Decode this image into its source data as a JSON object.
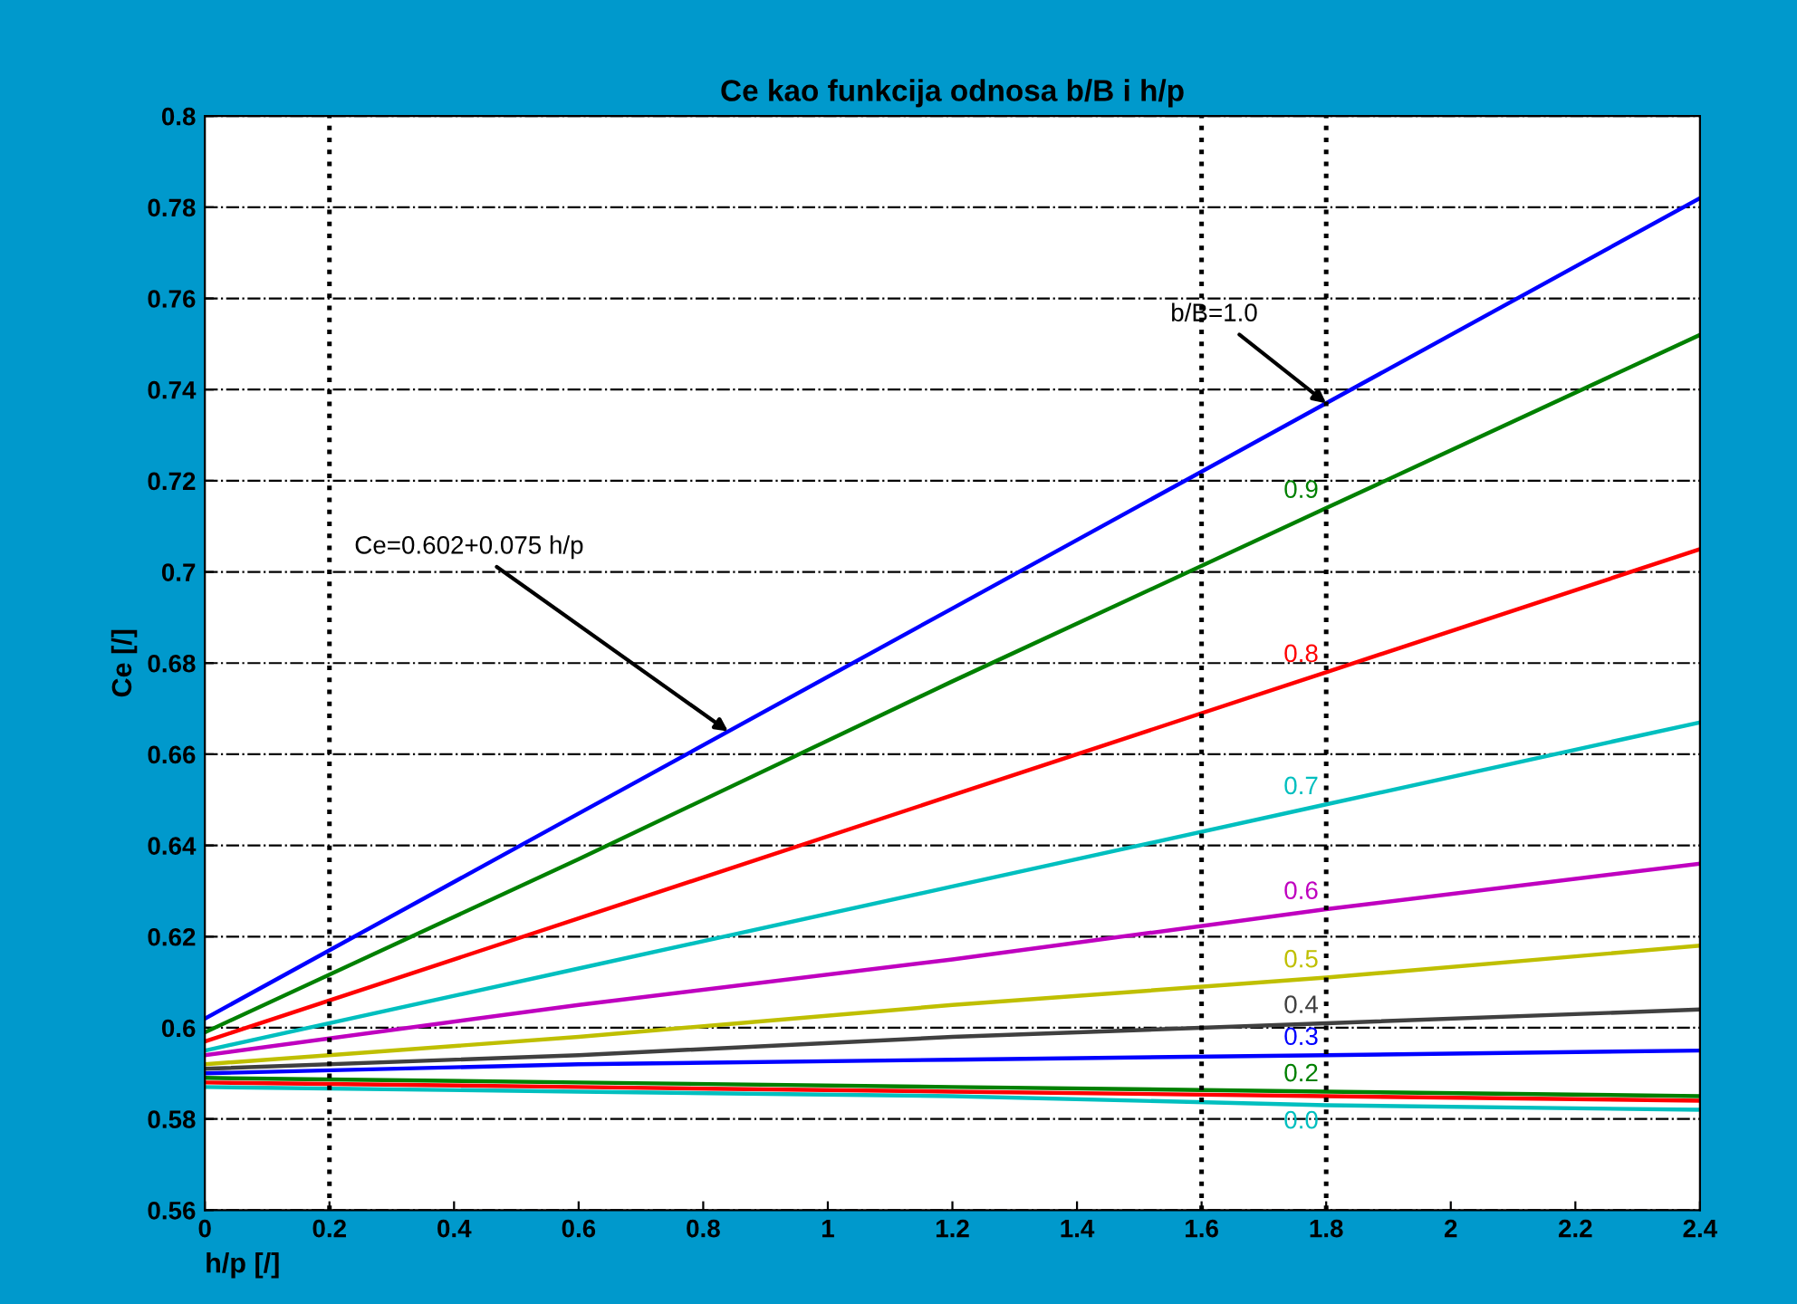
{
  "chart_data": {
    "type": "line",
    "title": "Ce kao funkcija odnosa b/B i h/p",
    "xlabel": "h/p [/]",
    "ylabel": "Ce [/]",
    "x": [
      0,
      0.6,
      1.2,
      1.8,
      2.4
    ],
    "series": [
      {
        "color": "#0000ff",
        "values": [
          0.602,
          0.647,
          0.692,
          0.737,
          0.782
        ]
      },
      {
        "name": "0.9",
        "color": "#008000",
        "values": [
          0.599,
          0.637,
          0.676,
          0.714,
          0.752
        ]
      },
      {
        "name": "0.8",
        "color": "#ff0000",
        "values": [
          0.597,
          0.624,
          0.651,
          0.678,
          0.705
        ]
      },
      {
        "name": "0.7",
        "color": "#00bfbf",
        "values": [
          0.595,
          0.613,
          0.631,
          0.649,
          0.667
        ]
      },
      {
        "name": "0.6",
        "color": "#bf00bf",
        "values": [
          0.594,
          0.605,
          0.615,
          0.626,
          0.636
        ]
      },
      {
        "name": "0.5",
        "color": "#bfbf00",
        "values": [
          0.592,
          0.598,
          0.605,
          0.611,
          0.618
        ]
      },
      {
        "name": "0.4",
        "color": "#404040",
        "values": [
          0.591,
          0.594,
          0.598,
          0.601,
          0.604
        ]
      },
      {
        "name": "0.3",
        "color": "#0000ff",
        "values": [
          0.59,
          0.592,
          0.593,
          0.594,
          0.595
        ]
      },
      {
        "name": "0.2",
        "color": "#008000",
        "values": [
          0.589,
          0.588,
          0.587,
          0.586,
          0.585
        ]
      },
      {
        "color": "#ff0000",
        "values": [
          0.588,
          0.587,
          0.586,
          0.585,
          0.584
        ]
      },
      {
        "name": "0.0",
        "color": "#00bfbf",
        "values": [
          0.587,
          0.586,
          0.585,
          0.583,
          0.582
        ]
      }
    ],
    "xlim": [
      0,
      2.4
    ],
    "ylim": [
      0.56,
      0.8
    ],
    "xticks": [
      0,
      0.2,
      0.4,
      0.6,
      0.8,
      1,
      1.2,
      1.4,
      1.6,
      1.8,
      2,
      2.2,
      2.4
    ],
    "yticks": [
      0.56,
      0.58,
      0.6,
      0.62,
      0.64,
      0.66,
      0.68,
      0.7,
      0.72,
      0.74,
      0.76,
      0.78,
      0.8
    ],
    "grid": "y",
    "marker": "none",
    "line_style": "solid",
    "ref_lines": [
      {
        "axis": "x",
        "value": 0.2,
        "color": "#000000",
        "line_style": "dotted"
      },
      {
        "axis": "x",
        "value": 1.6,
        "color": "#000000",
        "line_style": "dotted"
      },
      {
        "axis": "x",
        "value": 1.8,
        "color": "#000000",
        "line_style": "dotted"
      }
    ],
    "annotations": [
      {
        "text": "b/B=1.0",
        "x": 1.8,
        "y": 0.737
      },
      {
        "text": "Ce=0.602+0.075 h/p",
        "x": 0.84,
        "y": 0.665
      }
    ]
  }
}
